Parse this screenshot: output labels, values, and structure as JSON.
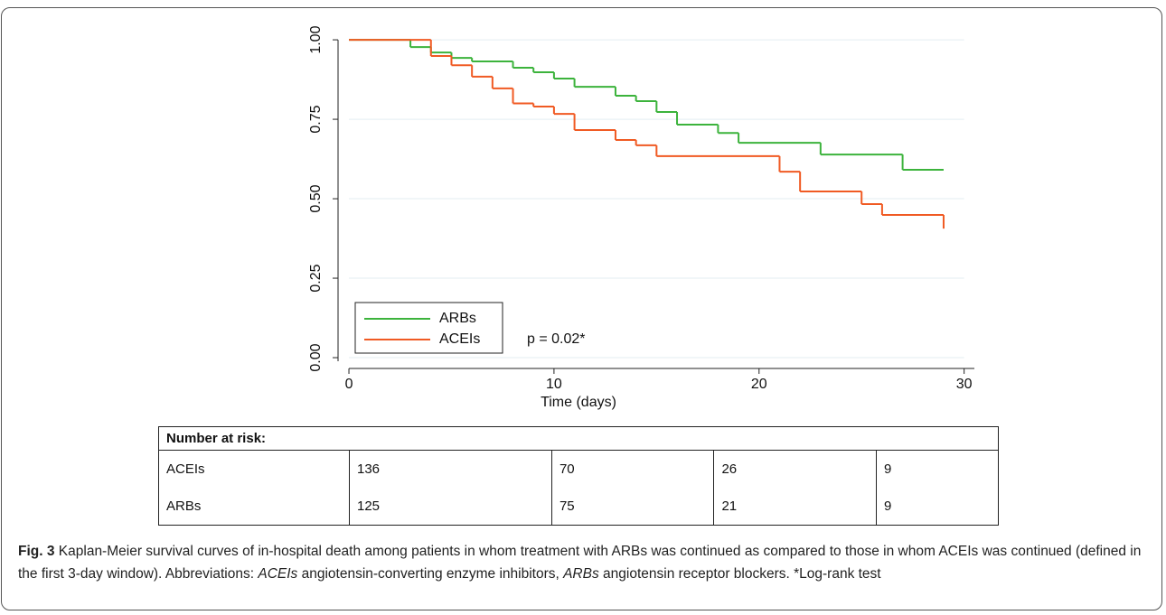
{
  "chart_data": {
    "type": "step",
    "xlabel": "Time (days)",
    "xlim": [
      -0.53,
      30.5
    ],
    "ylim": [
      -0.034,
      1.04
    ],
    "xticks": [
      0,
      10,
      20,
      30
    ],
    "yticks": [
      {
        "value": 0,
        "label": "0.00"
      },
      {
        "value": 0.25,
        "label": "0.25"
      },
      {
        "value": 0.5,
        "label": "0.50"
      },
      {
        "value": 0.75,
        "label": "0.75"
      },
      {
        "value": 1,
        "label": "1.00"
      }
    ],
    "grid": true,
    "legend": "lower left",
    "annotation": "p = 0.02*",
    "series": [
      {
        "name": "ARBs",
        "color": "#3cb33c",
        "x": [
          0,
          3,
          4,
          5,
          6,
          8,
          9,
          10,
          11,
          13,
          14,
          15,
          16,
          18,
          19,
          23,
          27,
          29
        ],
        "values": [
          1,
          0.977,
          0.96,
          0.943,
          0.932,
          0.912,
          0.898,
          0.878,
          0.852,
          0.824,
          0.807,
          0.773,
          0.733,
          0.707,
          0.676,
          0.639,
          0.591,
          0.591
        ]
      },
      {
        "name": "ACEIs",
        "color": "#f05a23",
        "x": [
          0,
          4,
          5,
          6,
          7,
          8,
          9,
          10,
          11,
          13,
          14,
          15,
          21,
          22,
          25,
          26,
          29
        ],
        "values": [
          1,
          0.949,
          0.92,
          0.884,
          0.847,
          0.8,
          0.79,
          0.767,
          0.716,
          0.685,
          0.668,
          0.634,
          0.585,
          0.523,
          0.483,
          0.449,
          0.406
        ]
      }
    ]
  },
  "table": {
    "header": "Number at risk:",
    "rows": [
      [
        "ACEIs",
        136,
        70,
        26,
        9
      ],
      [
        "ARBs",
        125,
        75,
        21,
        9
      ]
    ]
  },
  "caption": {
    "label": "Fig. 3",
    "parts": [
      "Kaplan-Meier survival curves of in-hospital death among patients in whom treatment with ARBs was continued as compared to those in whom ACEIs was continued (defined in the first 3-day window). Abbreviations: ",
      "ACEIs",
      " angiotensin-converting enzyme inhibitors, ",
      "ARBs",
      " angiotensin receptor blockers. *Log-rank test"
    ]
  }
}
